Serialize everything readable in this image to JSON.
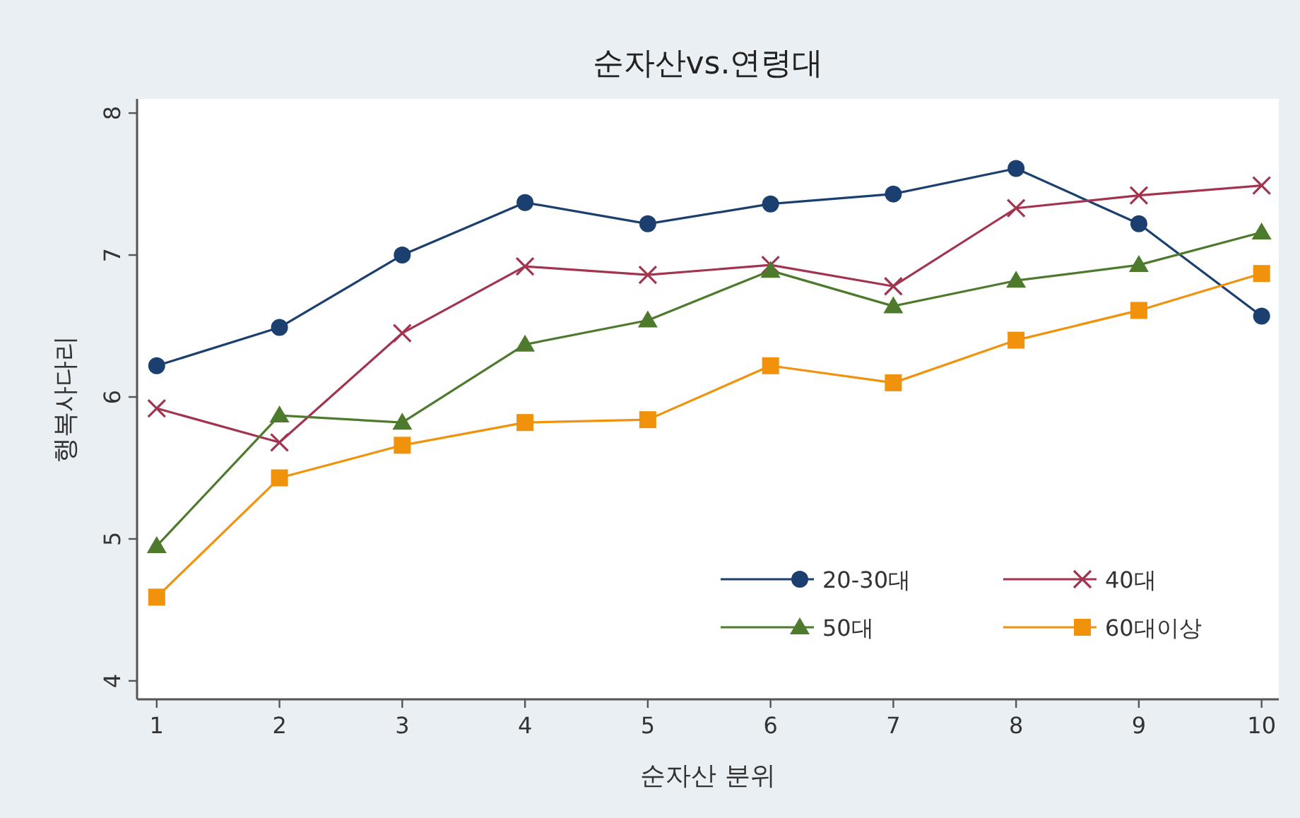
{
  "chart_data": {
    "type": "line",
    "title": "순자산vs.연령대",
    "xlabel": "순자산 분위",
    "ylabel": "행복사다리",
    "x": [
      1,
      2,
      3,
      4,
      5,
      6,
      7,
      8,
      9,
      10
    ],
    "xlim": [
      0.84,
      10.14
    ],
    "xticks": [
      1,
      2,
      3,
      4,
      5,
      6,
      7,
      8,
      9,
      10
    ],
    "ylim": [
      3.87,
      8.1
    ],
    "yticks": [
      4,
      5,
      6,
      7,
      8
    ],
    "grid": false,
    "legend": "bottom right",
    "series": [
      {
        "name": "20-30대",
        "color": "#1b3f6f",
        "marker": "circle",
        "values": [
          6.22,
          6.49,
          7.0,
          7.37,
          7.22,
          7.36,
          7.43,
          7.61,
          7.22,
          6.57
        ]
      },
      {
        "name": "40대",
        "color": "#a3344f",
        "marker": "cross",
        "values": [
          5.92,
          5.68,
          6.45,
          6.92,
          6.86,
          6.93,
          6.78,
          7.33,
          7.42,
          7.49
        ]
      },
      {
        "name": "50대",
        "color": "#4d7a2c",
        "marker": "triangle",
        "values": [
          4.95,
          5.87,
          5.82,
          6.37,
          6.54,
          6.89,
          6.64,
          6.82,
          6.93,
          7.16
        ]
      },
      {
        "name": "60대이상",
        "color": "#f0920c",
        "marker": "square",
        "values": [
          4.59,
          5.43,
          5.66,
          5.82,
          5.84,
          6.22,
          6.1,
          6.4,
          6.61,
          6.87
        ]
      }
    ]
  }
}
